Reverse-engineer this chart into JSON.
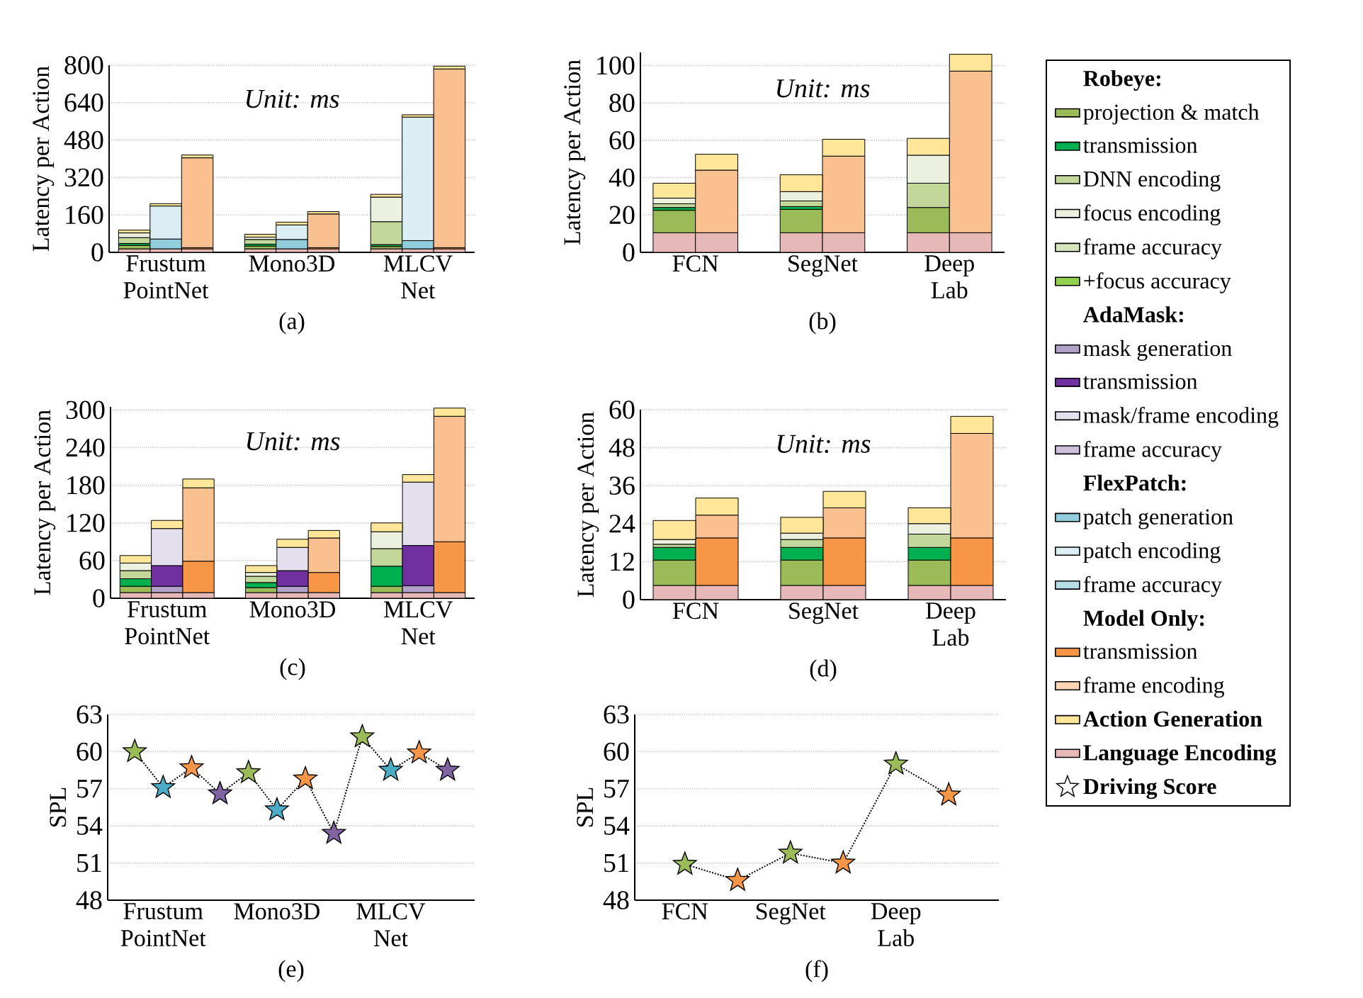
{
  "chart_data": [
    {
      "type": "bar",
      "stacked": true,
      "grid": "y",
      "ylabel": "Latency per Action",
      "annotations": [
        "*Unit: ms*",
        "(a)"
      ],
      "categories": [
        null,
        "Frustum PointNet",
        null,
        null,
        null,
        "Mono3D",
        null,
        null,
        null,
        "MLCV Net",
        null
      ],
      "ylim": [
        0,
        800
      ],
      "yticks": [
        0,
        160,
        320,
        480,
        640,
        800
      ],
      "series": [
        {
          "color": "#e6b8b7",
          "values": [
            15,
            15,
            15,
            null,
            15,
            15,
            15,
            null,
            15,
            15,
            15
          ]
        },
        {
          "color": "#9bbb59",
          "values": [
            15,
            null,
            null,
            null,
            12,
            null,
            null,
            null,
            10,
            null,
            null
          ]
        },
        {
          "color": "#00b050",
          "values": [
            8,
            null,
            null,
            null,
            8,
            null,
            null,
            null,
            8,
            null,
            null
          ]
        },
        {
          "color": "#c4d79b",
          "values": [
            25,
            null,
            null,
            null,
            20,
            null,
            null,
            null,
            98,
            null,
            null
          ]
        },
        {
          "color": "#ebf1de",
          "values": [
            20,
            null,
            null,
            null,
            10,
            null,
            null,
            null,
            105,
            null,
            null
          ]
        },
        {
          "color": "#92cddc",
          "values": [
            null,
            42,
            null,
            null,
            null,
            40,
            null,
            null,
            null,
            35,
            null
          ]
        },
        {
          "color": "#daeef3",
          "values": [
            null,
            141,
            null,
            null,
            null,
            62,
            null,
            null,
            null,
            528,
            null
          ]
        },
        {
          "color": "#f79646",
          "values": [
            null,
            null,
            5,
            null,
            null,
            null,
            5,
            null,
            null,
            null,
            5
          ]
        },
        {
          "color": "#fac090",
          "values": [
            null,
            null,
            384,
            null,
            null,
            null,
            144,
            null,
            null,
            null,
            764
          ]
        },
        {
          "color": "#ffe699",
          "values": [
            12,
            10,
            12,
            null,
            12,
            12,
            10,
            null,
            12,
            10,
            12
          ]
        }
      ]
    },
    {
      "type": "bar",
      "stacked": true,
      "grid": "y",
      "ylabel": "Latency per Action",
      "annotations": [
        "*Unit: ms*",
        "(b)"
      ],
      "categories": [
        "FCN",
        null,
        null,
        "SegNet",
        null,
        null,
        "Deep Lab",
        null
      ],
      "ylim": [
        0,
        107
      ],
      "yticks": [
        0,
        20,
        40,
        60,
        80,
        100
      ],
      "series": [
        {
          "color": "#e6b8b7",
          "values": [
            10.5,
            10.5,
            null,
            10.5,
            10.5,
            null,
            10.5,
            10.5
          ]
        },
        {
          "color": "#9bbb59",
          "values": [
            12,
            null,
            null,
            12.5,
            null,
            null,
            13.5,
            null
          ]
        },
        {
          "color": "#00b050",
          "values": [
            1.5,
            null,
            null,
            1.5,
            null,
            null,
            null,
            null
          ]
        },
        {
          "color": "#c4d79b",
          "values": [
            2,
            null,
            null,
            3,
            null,
            null,
            13,
            null
          ]
        },
        {
          "color": "#ebf1de",
          "values": [
            3,
            null,
            null,
            5,
            null,
            null,
            15,
            null
          ]
        },
        {
          "color": "#fac090",
          "values": [
            null,
            33.5,
            null,
            null,
            41,
            null,
            null,
            86.5
          ]
        },
        {
          "color": "#ffe699",
          "values": [
            8,
            8.5,
            null,
            9,
            9,
            null,
            9,
            9
          ]
        }
      ]
    },
    {
      "type": "bar",
      "stacked": true,
      "grid": "y",
      "ylabel": "Latency per Action",
      "annotations": [
        "*Unit: ms*",
        "(c)"
      ],
      "categories": [
        null,
        "Frustum PointNet",
        null,
        null,
        null,
        "Mono3D",
        null,
        null,
        null,
        "MLCV Net",
        null
      ],
      "ylim": [
        0,
        305
      ],
      "yticks": [
        0,
        60,
        120,
        180,
        240,
        300
      ],
      "series": [
        {
          "color": "#e6b8b7",
          "values": [
            9,
            9,
            9,
            null,
            9,
            9,
            9,
            null,
            9,
            9,
            9
          ]
        },
        {
          "color": "#9bbb59",
          "values": [
            10,
            null,
            null,
            null,
            8,
            null,
            null,
            null,
            10,
            null,
            null
          ]
        },
        {
          "color": "#00b050",
          "values": [
            12,
            null,
            null,
            null,
            8,
            null,
            null,
            null,
            32,
            null,
            null
          ]
        },
        {
          "color": "#c4d79b",
          "values": [
            13,
            null,
            null,
            null,
            10,
            null,
            null,
            null,
            28,
            null,
            null
          ]
        },
        {
          "color": "#ebf1de",
          "values": [
            12,
            null,
            null,
            null,
            6,
            null,
            null,
            null,
            27,
            null,
            null
          ]
        },
        {
          "color": "#b1a0c7",
          "values": [
            null,
            10,
            null,
            null,
            null,
            10,
            null,
            null,
            null,
            11,
            null
          ]
        },
        {
          "color": "#7030a0",
          "values": [
            null,
            33,
            null,
            null,
            null,
            25,
            null,
            null,
            null,
            64,
            null
          ]
        },
        {
          "color": "#e4dfec",
          "values": [
            null,
            59,
            null,
            null,
            null,
            37,
            null,
            null,
            null,
            101,
            null
          ]
        },
        {
          "color": "#f79646",
          "values": [
            null,
            null,
            50,
            null,
            null,
            null,
            32,
            null,
            null,
            null,
            81
          ]
        },
        {
          "color": "#fac090",
          "values": [
            null,
            null,
            117,
            null,
            null,
            null,
            55,
            null,
            null,
            null,
            200
          ]
        },
        {
          "color": "#ffe699",
          "values": [
            12,
            13,
            14,
            null,
            11,
            13,
            12,
            null,
            14,
            12,
            13
          ]
        }
      ]
    },
    {
      "type": "bar",
      "stacked": true,
      "grid": "y",
      "ylabel": "Latency per Action",
      "annotations": [
        "*Unit: ms*",
        "(d)"
      ],
      "categories": [
        "FCN",
        null,
        null,
        "SegNet",
        null,
        null,
        "Deep Lab",
        null
      ],
      "ylim": [
        0,
        60
      ],
      "yticks": [
        0,
        12,
        24,
        36,
        48,
        60
      ],
      "series": [
        {
          "color": "#e6b8b7",
          "values": [
            4.5,
            4.5,
            null,
            4.5,
            4.5,
            null,
            4.5,
            4.5
          ]
        },
        {
          "color": "#9bbb59",
          "values": [
            8,
            null,
            null,
            8,
            null,
            null,
            8,
            null
          ]
        },
        {
          "color": "#00b050",
          "values": [
            4,
            null,
            null,
            4,
            null,
            null,
            4,
            null
          ]
        },
        {
          "color": "#c4d79b",
          "values": [
            1,
            null,
            null,
            2.5,
            null,
            null,
            4.2,
            null
          ]
        },
        {
          "color": "#ebf1de",
          "values": [
            1.5,
            null,
            null,
            2,
            null,
            null,
            3.3,
            null
          ]
        },
        {
          "color": "#f79646",
          "values": [
            null,
            15,
            null,
            null,
            15,
            null,
            null,
            15
          ]
        },
        {
          "color": "#fac090",
          "values": [
            null,
            7.2,
            null,
            null,
            9.5,
            null,
            null,
            33
          ]
        },
        {
          "color": "#ffe699",
          "values": [
            6,
            5.4,
            null,
            5,
            5.2,
            null,
            5,
            5.4
          ]
        }
      ]
    },
    {
      "type": "line",
      "grid": "y",
      "line_style": "dotted",
      "ylabel": "SPL",
      "annotations": [
        "(e)"
      ],
      "categories": [
        null,
        "Frustum PointNet",
        null,
        null,
        null,
        "Mono3D",
        null,
        null,
        null,
        "MLCV Net",
        null,
        null
      ],
      "ylim": [
        48,
        63
      ],
      "yticks": [
        48,
        51,
        54,
        57,
        60,
        63
      ],
      "series": [
        {
          "color": "#000000",
          "values": [
            60,
            57.1,
            58.7,
            56.6,
            58.3,
            55.3,
            57.8,
            53.4,
            61.2,
            58.5,
            59.9,
            58.5
          ]
        },
        {
          "type": "scatter",
          "marker": "star",
          "color": "#9bbb59",
          "values": [
            60,
            null,
            null,
            null,
            58.3,
            null,
            null,
            null,
            61.2,
            null,
            null,
            null
          ]
        },
        {
          "type": "scatter",
          "marker": "star",
          "color": "#4bacc6",
          "values": [
            null,
            57.1,
            null,
            null,
            null,
            55.3,
            null,
            null,
            null,
            58.5,
            null,
            null
          ]
        },
        {
          "type": "scatter",
          "marker": "star",
          "color": "#f79646",
          "values": [
            null,
            null,
            58.7,
            null,
            null,
            null,
            57.8,
            null,
            null,
            null,
            59.9,
            null
          ]
        },
        {
          "type": "scatter",
          "marker": "star",
          "color": "#8064a2",
          "values": [
            null,
            null,
            null,
            56.6,
            null,
            null,
            null,
            53.4,
            null,
            null,
            null,
            58.5
          ]
        }
      ]
    },
    {
      "type": "line",
      "grid": "y",
      "line_style": "dotted",
      "ylabel": "SPL",
      "annotations": [
        "(f)"
      ],
      "categories": [
        "FCN",
        null,
        "SegNet",
        null,
        "Deep Lab",
        null
      ],
      "ylim": [
        48,
        63
      ],
      "yticks": [
        48,
        51,
        54,
        57,
        60,
        63
      ],
      "series": [
        {
          "color": "#000000",
          "values": [
            50.9,
            49.6,
            51.8,
            51.0,
            59.0,
            56.5
          ]
        },
        {
          "type": "scatter",
          "marker": "star",
          "color": "#9bbb59",
          "values": [
            50.9,
            null,
            51.8,
            null,
            59.0,
            null
          ]
        },
        {
          "type": "scatter",
          "marker": "star",
          "color": "#f79646",
          "values": [
            null,
            49.6,
            null,
            51.0,
            null,
            56.5
          ]
        }
      ]
    },
    {
      "type": "other",
      "legend": "right",
      "series": [
        {
          "name": "Robeye:",
          "color": null
        },
        {
          "name": "projection & match",
          "color": "#9bbb59"
        },
        {
          "name": "transmission",
          "color": "#00b050"
        },
        {
          "name": "DNN encoding",
          "color": "#c4d79b"
        },
        {
          "name": "focus encoding",
          "color": "#ebf1de"
        },
        {
          "name": "frame accuracy",
          "color": "#d8e4bc"
        },
        {
          "name": "+focus accuracy",
          "color": "#92d050"
        },
        {
          "name": "AdaMask:",
          "color": null
        },
        {
          "name": "mask generation",
          "color": "#b1a0c7"
        },
        {
          "name": "transmission",
          "color": "#7030a0"
        },
        {
          "name": "mask/frame encoding",
          "color": "#e4dfec"
        },
        {
          "name": "frame accuracy",
          "color": "#ccc0da"
        },
        {
          "name": "FlexPatch:",
          "color": null
        },
        {
          "name": "patch generation",
          "color": "#92cddc"
        },
        {
          "name": "patch encoding",
          "color": "#daeef3"
        },
        {
          "name": "frame accuracy",
          "color": "#b7dee8"
        },
        {
          "name": "Model Only:",
          "color": null
        },
        {
          "name": "transmission",
          "color": "#f79646"
        },
        {
          "name": "frame encoding",
          "color": "#fcd5b4"
        },
        {
          "name": "**Action Generation**",
          "color": "#ffe699"
        },
        {
          "name": "**Language Encoding**",
          "color": "#e6b8b7"
        },
        {
          "name": "**Driving Score**",
          "color": "#ffffff",
          "marker": "star"
        }
      ]
    }
  ]
}
